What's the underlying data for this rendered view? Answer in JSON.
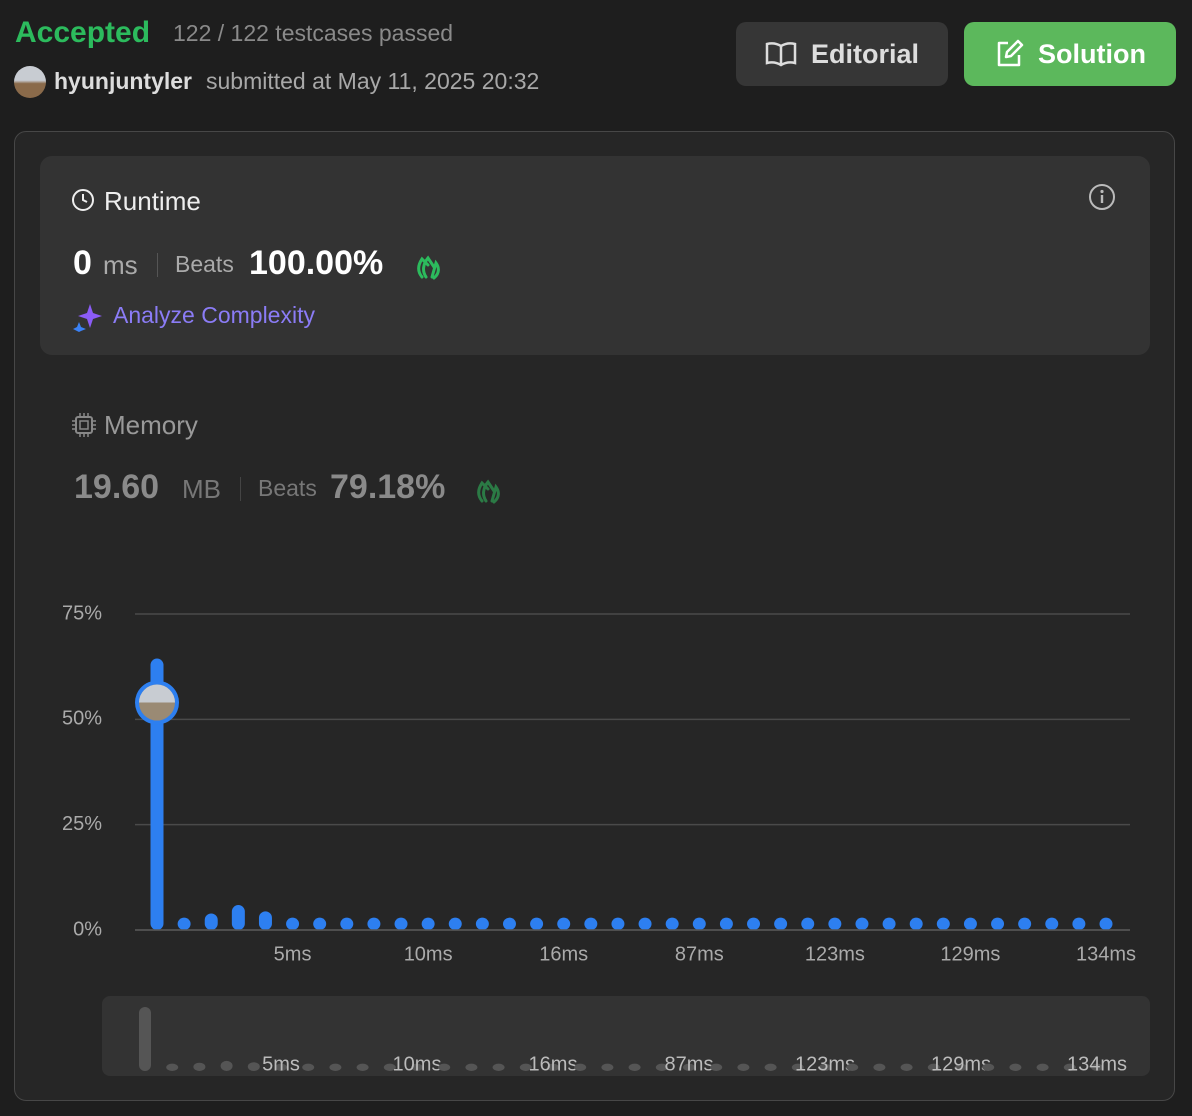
{
  "header": {
    "status": "Accepted",
    "testcases": "122 / 122 testcases passed",
    "user": "hyunjuntyler",
    "submitted": "submitted at May 11, 2025 20:32"
  },
  "buttons": {
    "editorial": "Editorial",
    "solution": "Solution"
  },
  "runtime": {
    "title": "Runtime",
    "value": "0",
    "unit": "ms",
    "beats_label": "Beats",
    "beats": "100.00%",
    "analyze": "Analyze Complexity"
  },
  "memory": {
    "title": "Memory",
    "value": "19.60",
    "unit": "MB",
    "beats_label": "Beats",
    "beats": "79.18%"
  },
  "chart_data": {
    "type": "bar",
    "color": "#2d7ff0",
    "categories": [
      null,
      null,
      null,
      null,
      null,
      "5ms",
      null,
      null,
      null,
      null,
      "10ms",
      null,
      null,
      null,
      null,
      "16ms",
      null,
      null,
      null,
      null,
      "87ms",
      null,
      null,
      null,
      null,
      "123ms",
      null,
      null,
      null,
      null,
      "129ms",
      null,
      null,
      null,
      null,
      "134ms"
    ],
    "values": [
      63,
      1.5,
      2.5,
      4.5,
      3,
      1.5,
      1.5,
      1.5,
      1.5,
      1.5,
      1.5,
      1.5,
      1.5,
      1.5,
      1.5,
      1.5,
      1.5,
      1.5,
      1.5,
      1.5,
      1.5,
      1.5,
      1.5,
      1.5,
      1.5,
      1.5,
      1.5,
      1.5,
      1.5,
      1.5,
      1.5,
      1.5,
      1.5,
      1.5,
      1.5,
      1.5
    ],
    "ylim": [
      0,
      75
    ],
    "yticks": [
      {
        "value": 0,
        "label": "0%"
      },
      {
        "value": 25,
        "label": "25%"
      },
      {
        "value": 50,
        "label": "50%"
      },
      {
        "value": 75,
        "label": "75%"
      }
    ],
    "grid": true
  }
}
